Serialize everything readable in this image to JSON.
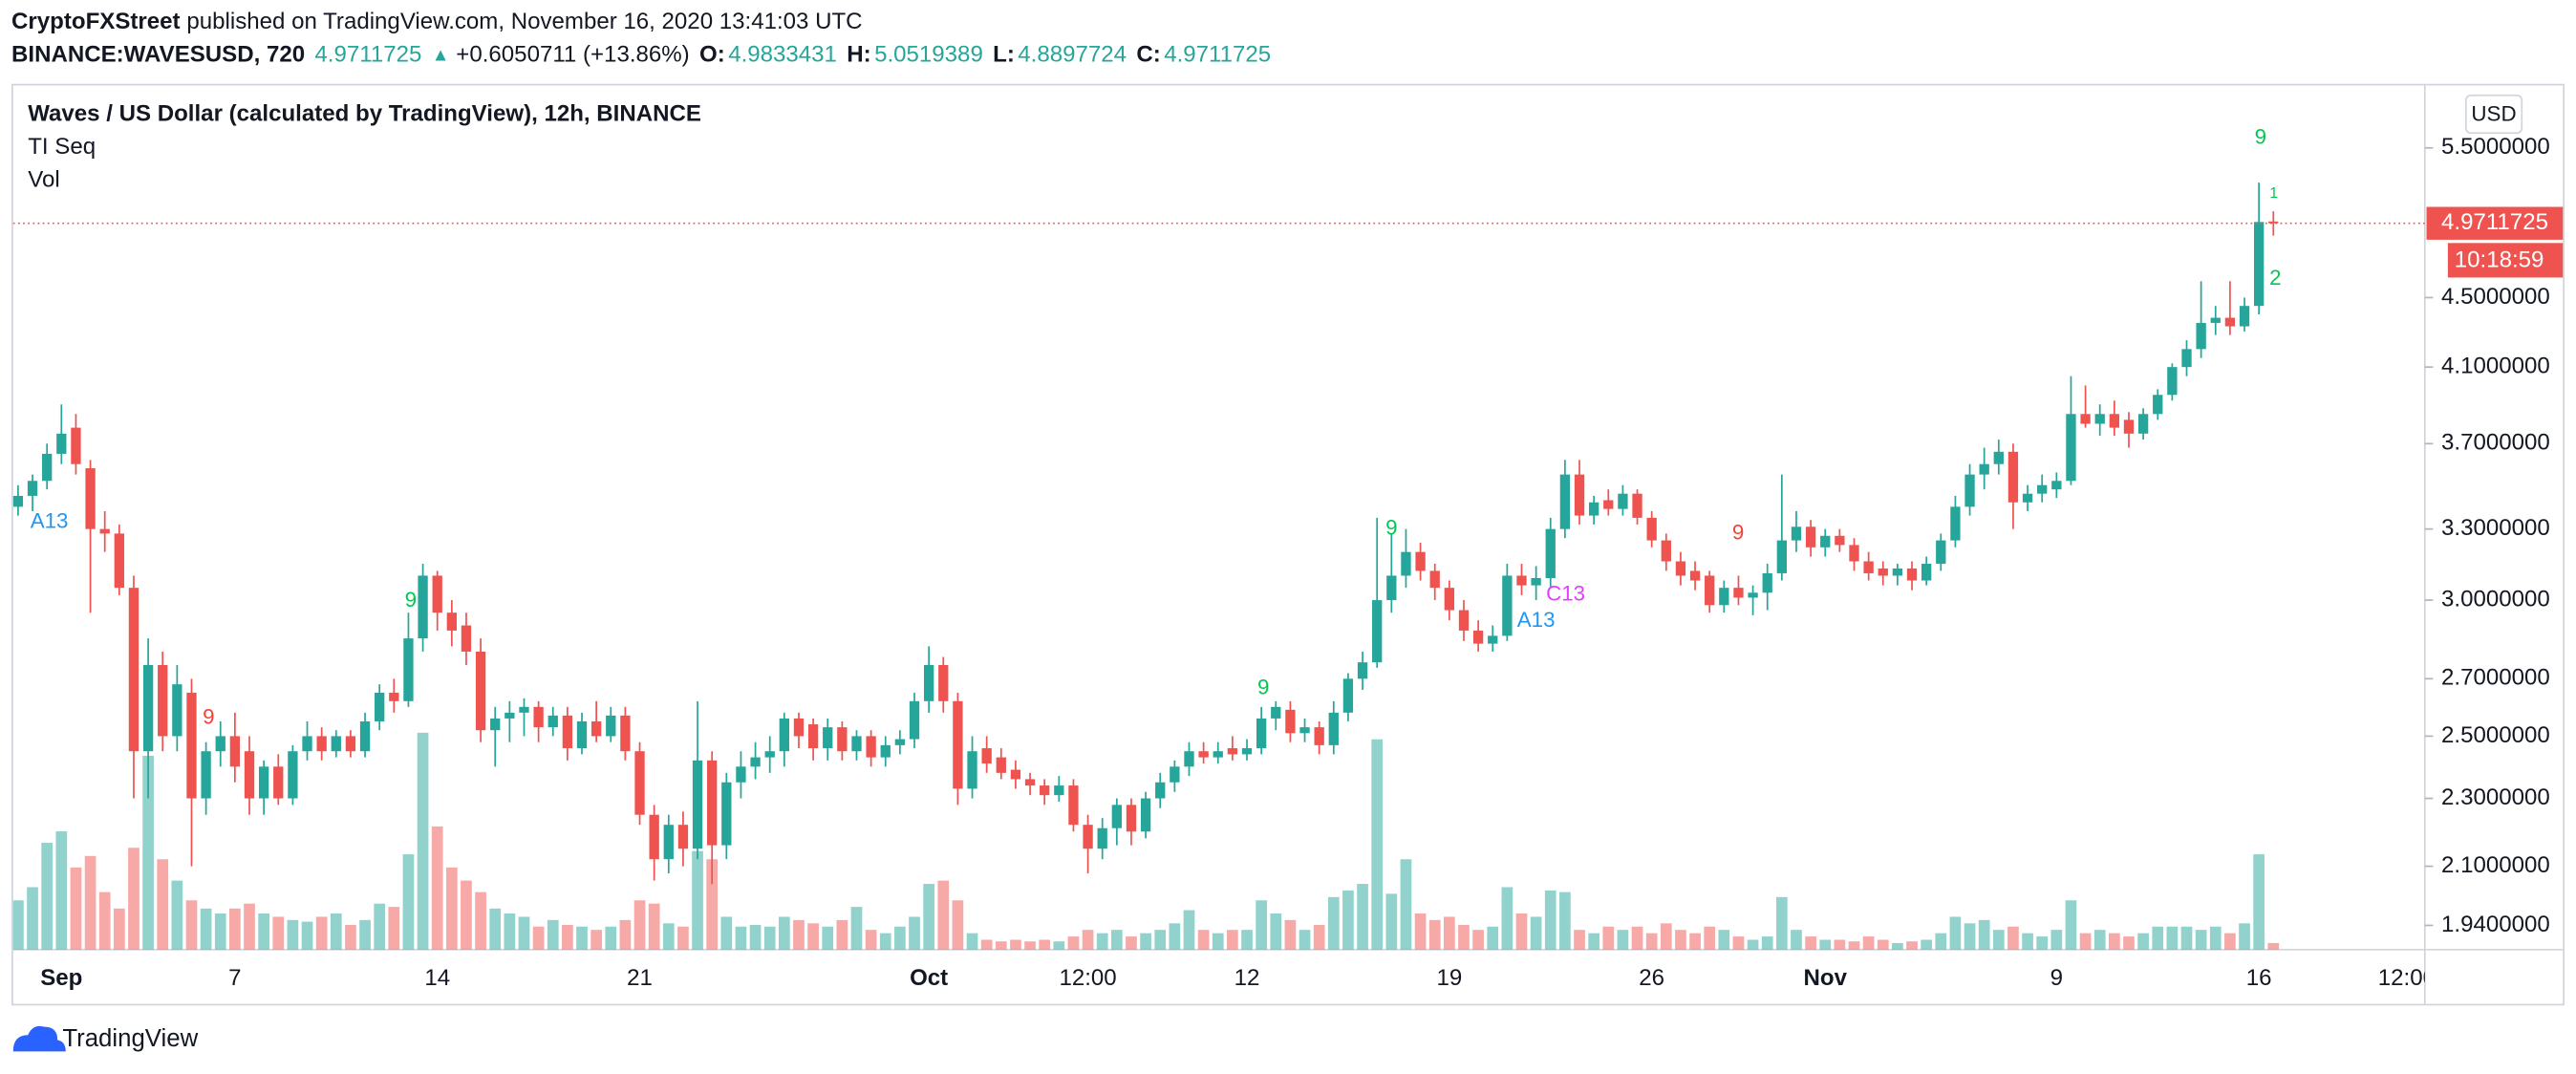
{
  "header": {
    "publisher": "CryptoFXStreet",
    "published_text": "published on TradingView.com, November 16, 2020 13:41:03 UTC",
    "symbol": "BINANCE:WAVESUSD, 720",
    "last": 4.9711725,
    "arrow": "▲",
    "change": "+0.6050711 (+13.86%)",
    "quote": [
      {
        "label": "O:",
        "value": 4.9833431
      },
      {
        "label": "H:",
        "value": 5.0519389
      },
      {
        "label": "L:",
        "value": 4.8897724
      },
      {
        "label": "C:",
        "value": 4.9711725
      }
    ]
  },
  "legend": {
    "title": "Waves / US Dollar (calculated by TradingView), 12h, BINANCE",
    "indicators": [
      "TI Seq",
      "Vol"
    ]
  },
  "price_axis": {
    "currency": "USD",
    "last_label": "4.9711725",
    "countdown": "10:18:59"
  },
  "annotations": [
    "A13",
    "9",
    "9",
    "9",
    "9",
    "A13",
    "C13",
    "9",
    "9",
    "1",
    "2"
  ],
  "footer": {
    "brand": "TradingView"
  },
  "chart_data": {
    "type": "candlestick",
    "log_scale": true,
    "grid": false,
    "up_color": "#26a69a",
    "down_color": "#ef5350",
    "ylim": [
      1.878,
      5.98
    ],
    "yticks": [
      {
        "value": 5.5,
        "label": "5.5000000"
      },
      {
        "value": 4.5,
        "label": "4.5000000"
      },
      {
        "value": 4.1,
        "label": "4.1000000"
      },
      {
        "value": 3.7,
        "label": "3.7000000"
      },
      {
        "value": 3.3,
        "label": "3.3000000"
      },
      {
        "value": 3.0,
        "label": "3.0000000"
      },
      {
        "value": 2.7,
        "label": "2.7000000"
      },
      {
        "value": 2.5,
        "label": "2.5000000"
      },
      {
        "value": 2.3,
        "label": "2.3000000"
      },
      {
        "value": 2.1,
        "label": "2.1000000"
      },
      {
        "value": 1.94,
        "label": "1.9400000"
      }
    ],
    "x_future_label": "12:00",
    "categories": [
      null,
      null,
      null,
      "Sep",
      null,
      null,
      null,
      null,
      null,
      null,
      null,
      null,
      null,
      null,
      null,
      "7",
      null,
      null,
      null,
      null,
      null,
      null,
      null,
      null,
      null,
      null,
      null,
      null,
      null,
      "14",
      null,
      null,
      null,
      null,
      null,
      null,
      null,
      null,
      null,
      null,
      null,
      null,
      null,
      "21",
      null,
      null,
      null,
      null,
      null,
      null,
      null,
      null,
      null,
      null,
      null,
      null,
      null,
      null,
      null,
      null,
      null,
      null,
      null,
      "Oct",
      null,
      null,
      null,
      null,
      null,
      null,
      null,
      null,
      null,
      null,
      "12:00",
      null,
      null,
      null,
      null,
      null,
      null,
      null,
      null,
      null,
      null,
      "12",
      null,
      null,
      null,
      null,
      null,
      null,
      null,
      null,
      null,
      null,
      null,
      null,
      null,
      "19",
      null,
      null,
      null,
      null,
      null,
      null,
      null,
      null,
      null,
      null,
      null,
      null,
      null,
      "26",
      null,
      null,
      null,
      null,
      null,
      null,
      null,
      null,
      null,
      null,
      null,
      "Nov",
      null,
      null,
      null,
      null,
      null,
      null,
      null,
      null,
      null,
      null,
      null,
      null,
      null,
      null,
      null,
      "9",
      null,
      null,
      null,
      null,
      null,
      null,
      null,
      null,
      null,
      null,
      null,
      null,
      null,
      "16",
      null
    ],
    "open": [
      3.4,
      3.45,
      3.52,
      3.65,
      3.78,
      3.58,
      3.3,
      3.28,
      3.05,
      2.45,
      2.75,
      2.5,
      2.65,
      2.3,
      2.45,
      2.5,
      2.45,
      2.3,
      2.4,
      2.3,
      2.45,
      2.5,
      2.45,
      2.5,
      2.45,
      2.55,
      2.65,
      2.62,
      2.85,
      3.1,
      2.95,
      2.9,
      2.8,
      2.52,
      2.56,
      2.58,
      2.6,
      2.53,
      2.57,
      2.46,
      2.55,
      2.5,
      2.57,
      2.45,
      2.25,
      2.12,
      2.22,
      2.15,
      2.42,
      2.16,
      2.35,
      2.4,
      2.43,
      2.45,
      2.56,
      2.54,
      2.46,
      2.53,
      2.45,
      2.5,
      2.43,
      2.47,
      2.49,
      2.62,
      2.75,
      2.62,
      2.33,
      2.46,
      2.43,
      2.39,
      2.36,
      2.34,
      2.31,
      2.34,
      2.22,
      2.15,
      2.21,
      2.28,
      2.2,
      2.3,
      2.35,
      2.4,
      2.45,
      2.43,
      2.46,
      2.44,
      2.46,
      2.56,
      2.59,
      2.51,
      2.53,
      2.47,
      2.58,
      2.7,
      2.76,
      3.0,
      3.1,
      3.2,
      3.12,
      3.05,
      2.96,
      2.88,
      2.83,
      2.86,
      3.1,
      3.06,
      3.09,
      3.3,
      3.55,
      3.36,
      3.43,
      3.39,
      3.46,
      3.35,
      3.25,
      3.16,
      3.12,
      3.1,
      2.98,
      3.05,
      3.01,
      3.03,
      3.11,
      3.25,
      3.31,
      3.22,
      3.27,
      3.23,
      3.16,
      3.13,
      3.1,
      3.13,
      3.08,
      3.15,
      3.25,
      3.4,
      3.55,
      3.6,
      3.66,
      3.42,
      3.46,
      3.48,
      3.52,
      3.85,
      3.8,
      3.85,
      3.82,
      3.75,
      3.85,
      3.95,
      4.1,
      4.2,
      4.35,
      4.38,
      4.33,
      4.45,
      4.9833431
    ],
    "high": [
      3.5,
      3.55,
      3.7,
      3.9,
      3.85,
      3.62,
      3.38,
      3.32,
      3.1,
      2.85,
      2.8,
      2.75,
      2.7,
      2.48,
      2.55,
      2.58,
      2.5,
      2.42,
      2.44,
      2.47,
      2.55,
      2.53,
      2.52,
      2.52,
      2.58,
      2.68,
      2.7,
      2.95,
      3.15,
      3.12,
      3.0,
      2.95,
      2.85,
      2.6,
      2.62,
      2.63,
      2.62,
      2.6,
      2.6,
      2.58,
      2.62,
      2.6,
      2.6,
      2.48,
      2.28,
      2.25,
      2.26,
      2.62,
      2.45,
      2.38,
      2.45,
      2.48,
      2.5,
      2.58,
      2.58,
      2.56,
      2.56,
      2.55,
      2.52,
      2.52,
      2.5,
      2.52,
      2.65,
      2.82,
      2.78,
      2.65,
      2.5,
      2.5,
      2.46,
      2.42,
      2.38,
      2.36,
      2.37,
      2.36,
      2.25,
      2.24,
      2.3,
      2.3,
      2.32,
      2.38,
      2.42,
      2.48,
      2.48,
      2.48,
      2.5,
      2.49,
      2.6,
      2.62,
      2.62,
      2.56,
      2.55,
      2.62,
      2.72,
      2.8,
      3.35,
      3.28,
      3.3,
      3.24,
      3.15,
      3.08,
      3.0,
      2.92,
      2.9,
      3.15,
      3.15,
      3.14,
      3.35,
      3.62,
      3.62,
      3.45,
      3.48,
      3.5,
      3.48,
      3.38,
      3.28,
      3.2,
      3.16,
      3.12,
      3.08,
      3.1,
      3.06,
      3.15,
      3.55,
      3.38,
      3.34,
      3.3,
      3.3,
      3.26,
      3.2,
      3.16,
      3.15,
      3.16,
      3.18,
      3.28,
      3.45,
      3.6,
      3.68,
      3.72,
      3.7,
      3.5,
      3.55,
      3.56,
      4.05,
      4.0,
      3.9,
      3.92,
      3.86,
      3.88,
      3.98,
      4.12,
      4.25,
      4.6,
      4.45,
      4.6,
      4.5,
      5.25,
      5.0519389
    ],
    "low": [
      3.36,
      3.38,
      3.48,
      3.6,
      3.55,
      2.95,
      3.2,
      3.02,
      2.3,
      2.3,
      2.45,
      2.45,
      2.1,
      2.25,
      2.4,
      2.35,
      2.25,
      2.25,
      2.28,
      2.28,
      2.42,
      2.42,
      2.43,
      2.43,
      2.43,
      2.52,
      2.58,
      2.6,
      2.8,
      2.88,
      2.82,
      2.75,
      2.48,
      2.4,
      2.48,
      2.5,
      2.48,
      2.5,
      2.42,
      2.44,
      2.48,
      2.48,
      2.42,
      2.22,
      2.06,
      2.08,
      2.1,
      2.12,
      2.05,
      2.12,
      2.3,
      2.36,
      2.38,
      2.4,
      2.46,
      2.42,
      2.42,
      2.42,
      2.42,
      2.4,
      2.4,
      2.44,
      2.46,
      2.58,
      2.58,
      2.28,
      2.3,
      2.38,
      2.36,
      2.33,
      2.31,
      2.28,
      2.29,
      2.2,
      2.08,
      2.12,
      2.16,
      2.16,
      2.18,
      2.27,
      2.32,
      2.37,
      2.41,
      2.41,
      2.42,
      2.42,
      2.44,
      2.52,
      2.48,
      2.48,
      2.44,
      2.44,
      2.55,
      2.66,
      2.74,
      2.95,
      3.05,
      3.08,
      3.0,
      2.92,
      2.84,
      2.8,
      2.8,
      2.84,
      3.02,
      3.0,
      3.05,
      3.26,
      3.32,
      3.32,
      3.36,
      3.36,
      3.32,
      3.22,
      3.12,
      3.06,
      3.04,
      2.95,
      2.95,
      2.98,
      2.94,
      2.96,
      3.08,
      3.2,
      3.18,
      3.18,
      3.2,
      3.12,
      3.08,
      3.06,
      3.06,
      3.04,
      3.06,
      3.12,
      3.22,
      3.36,
      3.48,
      3.55,
      3.3,
      3.38,
      3.42,
      3.44,
      3.5,
      3.78,
      3.74,
      3.74,
      3.68,
      3.72,
      3.82,
      3.92,
      4.05,
      4.15,
      4.28,
      4.28,
      4.3,
      4.4,
      4.8897724
    ],
    "close": [
      3.45,
      3.52,
      3.65,
      3.75,
      3.6,
      3.3,
      3.28,
      3.05,
      2.45,
      2.75,
      2.5,
      2.68,
      2.3,
      2.45,
      2.5,
      2.4,
      2.3,
      2.4,
      2.3,
      2.45,
      2.5,
      2.45,
      2.5,
      2.45,
      2.55,
      2.65,
      2.62,
      2.85,
      3.1,
      2.95,
      2.88,
      2.8,
      2.52,
      2.56,
      2.58,
      2.6,
      2.53,
      2.57,
      2.46,
      2.55,
      2.5,
      2.57,
      2.45,
      2.25,
      2.12,
      2.22,
      2.15,
      2.42,
      2.16,
      2.35,
      2.4,
      2.43,
      2.45,
      2.56,
      2.5,
      2.46,
      2.53,
      2.45,
      2.5,
      2.43,
      2.47,
      2.49,
      2.62,
      2.75,
      2.62,
      2.33,
      2.45,
      2.41,
      2.38,
      2.36,
      2.34,
      2.31,
      2.34,
      2.22,
      2.15,
      2.21,
      2.28,
      2.2,
      2.3,
      2.35,
      2.4,
      2.45,
      2.43,
      2.45,
      2.44,
      2.46,
      2.56,
      2.6,
      2.51,
      2.53,
      2.47,
      2.58,
      2.7,
      2.76,
      3.0,
      3.1,
      3.2,
      3.12,
      3.05,
      2.96,
      2.88,
      2.83,
      2.86,
      3.1,
      3.06,
      3.09,
      3.3,
      3.55,
      3.36,
      3.42,
      3.39,
      3.46,
      3.35,
      3.25,
      3.16,
      3.1,
      3.08,
      2.98,
      3.05,
      3.01,
      3.03,
      3.11,
      3.25,
      3.31,
      3.22,
      3.27,
      3.23,
      3.16,
      3.11,
      3.1,
      3.13,
      3.08,
      3.15,
      3.25,
      3.4,
      3.55,
      3.6,
      3.66,
      3.42,
      3.46,
      3.5,
      3.52,
      3.85,
      3.8,
      3.85,
      3.78,
      3.75,
      3.85,
      3.95,
      4.1,
      4.2,
      4.35,
      4.38,
      4.33,
      4.45,
      4.98,
      4.9711725
    ],
    "vlim": [
      0,
      140
    ],
    "volume": [
      30,
      38,
      65,
      72,
      50,
      57,
      35,
      25,
      62,
      118,
      55,
      42,
      30,
      25,
      22,
      25,
      28,
      22,
      20,
      18,
      17,
      20,
      22,
      15,
      18,
      28,
      26,
      58,
      132,
      75,
      50,
      42,
      35,
      25,
      22,
      20,
      14,
      18,
      15,
      14,
      12,
      14,
      18,
      30,
      28,
      16,
      14,
      60,
      55,
      20,
      14,
      15,
      14,
      20,
      18,
      16,
      14,
      18,
      26,
      12,
      10,
      14,
      20,
      40,
      42,
      30,
      10,
      6,
      5,
      6,
      5,
      6,
      5,
      8,
      12,
      10,
      12,
      8,
      10,
      12,
      16,
      24,
      12,
      10,
      12,
      12,
      30,
      22,
      18,
      12,
      15,
      32,
      36,
      40,
      128,
      34,
      55,
      22,
      18,
      20,
      15,
      12,
      14,
      38,
      22,
      20,
      36,
      35,
      12,
      10,
      14,
      12,
      14,
      10,
      16,
      12,
      10,
      14,
      12,
      8,
      6,
      8,
      32,
      12,
      8,
      6,
      6,
      5,
      8,
      6,
      4,
      5,
      6,
      10,
      20,
      16,
      18,
      12,
      14,
      10,
      8,
      12,
      30,
      10,
      12,
      10,
      8,
      10,
      14,
      14,
      14,
      12,
      14,
      10,
      16,
      58,
      4
    ]
  }
}
